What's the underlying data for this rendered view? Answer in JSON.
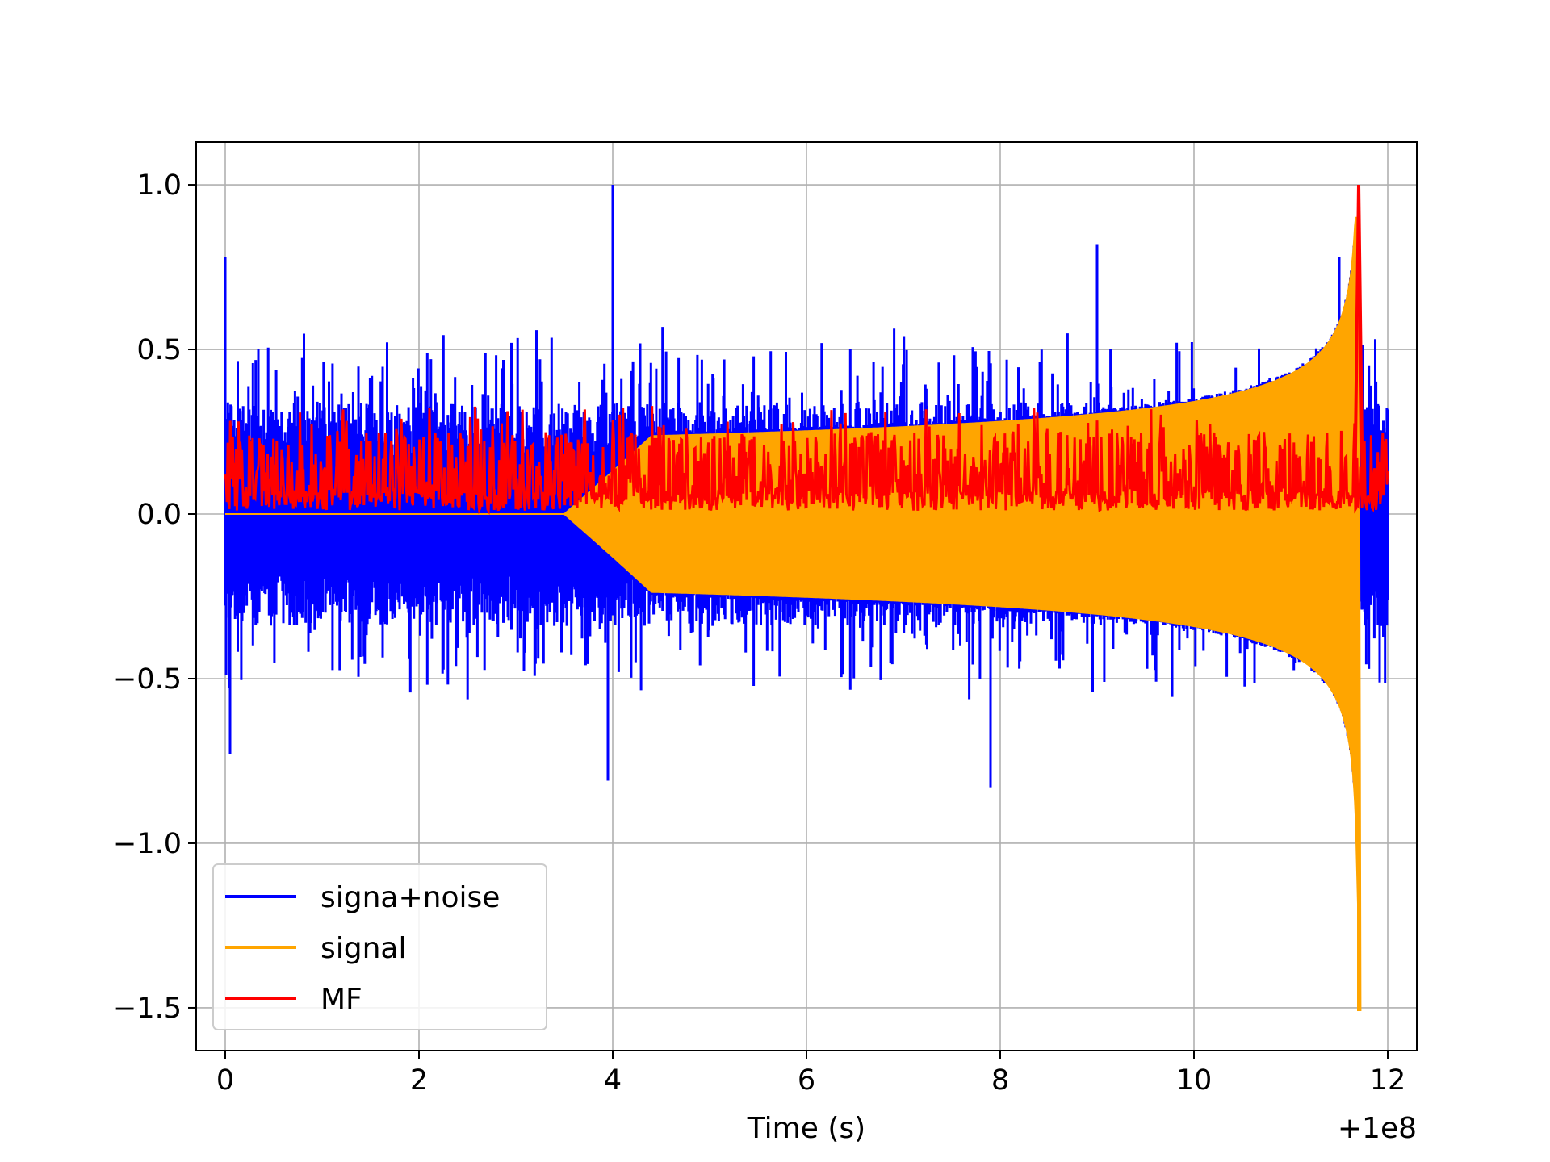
{
  "chart_data": {
    "type": "line",
    "title": "",
    "xlabel": "Time (s)",
    "ylabel": "",
    "x_offset_label": "+1e8",
    "xlim": [
      -0.3,
      12.3
    ],
    "ylim": [
      -1.63,
      1.13
    ],
    "xticks": [
      0,
      2,
      4,
      6,
      8,
      10,
      12
    ],
    "xtick_labels": [
      "0",
      "2",
      "4",
      "6",
      "8",
      "10",
      "12"
    ],
    "yticks": [
      -1.5,
      -1.0,
      -0.5,
      0.0,
      0.5,
      1.0
    ],
    "ytick_labels": [
      "−1.5",
      "−1.0",
      "−0.5",
      "0.0",
      "0.5",
      "1.0"
    ],
    "grid": true,
    "legend_position": "lower-left",
    "series": [
      {
        "name": "signa+noise",
        "color": "#0000ff",
        "x_range": [
          0,
          12
        ],
        "y_envelope_max": 1.0,
        "y_envelope_min": -0.82,
        "peaks": [
          [
            0.0,
            0.78
          ],
          [
            4.0,
            1.0
          ],
          [
            9.0,
            0.82
          ],
          [
            11.5,
            0.78
          ],
          [
            0.05,
            -0.73
          ],
          [
            3.95,
            -0.81
          ],
          [
            7.9,
            -0.83
          ]
        ]
      },
      {
        "name": "signal",
        "color": "#ffa500",
        "x_range": [
          0,
          11.7
        ],
        "onset_s": 3.5,
        "amplitude_at_onset": 0.23,
        "max": 0.9,
        "min": -1.51,
        "merger_s": 11.7
      },
      {
        "name": "MF",
        "color": "#ff0000",
        "x_range": [
          0,
          12
        ],
        "baseline": [
          0.0,
          0.33
        ],
        "peak": [
          11.7,
          1.0
        ]
      }
    ]
  }
}
